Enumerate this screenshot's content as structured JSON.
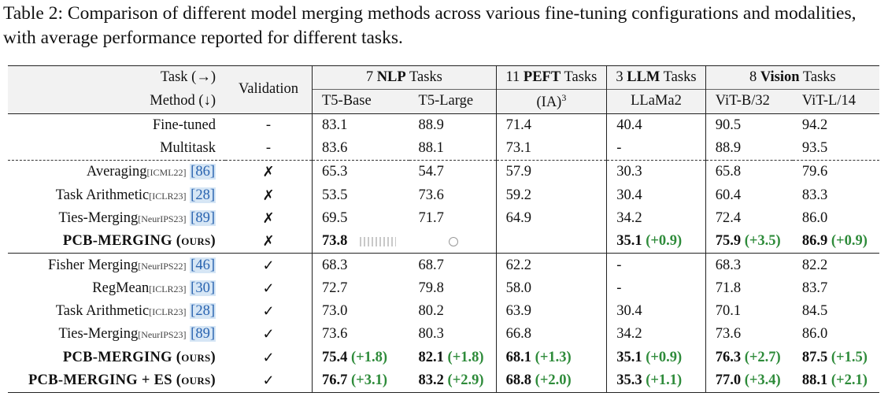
{
  "caption": {
    "label": "Table 2:",
    "text": "Comparison of different model merging methods across various fine-tuning configurations and modalities, with average performance reported for different tasks."
  },
  "header": {
    "task_label": "Task (→)",
    "method_label": "Method (↓)",
    "validation_label": "Validation",
    "groups": [
      {
        "prefix": "7 ",
        "bold": "NLP",
        "suffix": " Tasks"
      },
      {
        "prefix": "11 ",
        "bold": "PEFT",
        "suffix": " Tasks"
      },
      {
        "prefix": "3 ",
        "bold": "LLM",
        "suffix": " Tasks"
      },
      {
        "prefix": "8 ",
        "bold": "Vision",
        "suffix": " Tasks"
      }
    ],
    "models": [
      "T5-Base",
      "T5-Large",
      "(IA)",
      "LLaMa2",
      "ViT-B/32",
      "ViT-L/14"
    ],
    "ia_sup": "3"
  },
  "rows": [
    {
      "method": "Fine-tuned",
      "venue": "",
      "ref": "",
      "val": "-",
      "vals": [
        "83.1",
        "88.9",
        "71.4",
        "40.4",
        "90.5",
        "94.2"
      ]
    },
    {
      "method": "Multitask",
      "venue": "",
      "ref": "",
      "val": "-",
      "vals": [
        "83.6",
        "88.1",
        "73.1",
        "-",
        "88.9",
        "93.5"
      ]
    },
    {
      "method": "Averaging",
      "venue": "[ICML22]",
      "ref": "[86]",
      "val": "✗",
      "vals": [
        "65.3",
        "54.7",
        "57.9",
        "30.3",
        "65.8",
        "79.6"
      ]
    },
    {
      "method": "Task Arithmetic",
      "venue": "[ICLR23]",
      "ref": "[28]",
      "val": "✗",
      "vals": [
        "53.5",
        "73.6",
        "59.2",
        "30.4",
        "60.4",
        "83.3"
      ]
    },
    {
      "method": "Ties-Merging",
      "venue": "[NeurIPS23]",
      "ref": "[89]",
      "val": "✗",
      "vals": [
        "69.5",
        "71.7",
        "64.9",
        "34.2",
        "72.4",
        "86.0"
      ]
    },
    {
      "method": "PCB-MERGING (ours)",
      "val": "✗",
      "bvals": [
        {
          "v": "73.8",
          "g": ""
        },
        {
          "v": "",
          "g": ""
        },
        {
          "v": "",
          "g": ""
        },
        {
          "v": "35.1",
          "g": "(+0.9)"
        },
        {
          "v": "75.9",
          "g": "(+3.5)"
        },
        {
          "v": "86.9",
          "g": "(+0.9)"
        }
      ]
    },
    {
      "method": "Fisher Merging",
      "venue": "[NeurIPS22]",
      "ref": "[46]",
      "val": "✓",
      "vals": [
        "68.3",
        "68.7",
        "62.2",
        "-",
        "68.3",
        "82.2"
      ]
    },
    {
      "method": "RegMean",
      "venue": "[ICLR23]",
      "ref": "[30]",
      "val": "✓",
      "vals": [
        "72.7",
        "79.8",
        "58.0",
        "-",
        "71.8",
        "83.7"
      ]
    },
    {
      "method": "Task Arithmetic",
      "venue": "[ICLR23]",
      "ref": "[28]",
      "val": "✓",
      "vals": [
        "73.0",
        "80.2",
        "63.9",
        "30.4",
        "70.1",
        "84.5"
      ]
    },
    {
      "method": "Ties-Merging",
      "venue": "[NeurIPS23]",
      "ref": "[89]",
      "val": "✓",
      "vals": [
        "73.6",
        "80.3",
        "66.8",
        "34.2",
        "73.6",
        "86.0"
      ]
    },
    {
      "method": "PCB-MERGING (ours)",
      "val": "✓",
      "bvals": [
        {
          "v": "75.4",
          "g": "(+1.8)"
        },
        {
          "v": "82.1",
          "g": "(+1.8)"
        },
        {
          "v": "68.1",
          "g": "(+1.3)"
        },
        {
          "v": "35.1",
          "g": "(+0.9)"
        },
        {
          "v": "76.3",
          "g": "(+2.7)"
        },
        {
          "v": "87.5",
          "g": "(+1.5)"
        }
      ]
    },
    {
      "method": "PCB-MERGING + ES (ours)",
      "val": "✓",
      "bvals": [
        {
          "v": "76.7",
          "g": "(+3.1)"
        },
        {
          "v": "83.2",
          "g": "(+2.9)"
        },
        {
          "v": "68.8",
          "g": "(+2.0)"
        },
        {
          "v": "35.3",
          "g": "(+1.1)"
        },
        {
          "v": "77.0",
          "g": "(+3.4)"
        },
        {
          "v": "88.1",
          "g": "(+2.1)"
        }
      ]
    }
  ]
}
